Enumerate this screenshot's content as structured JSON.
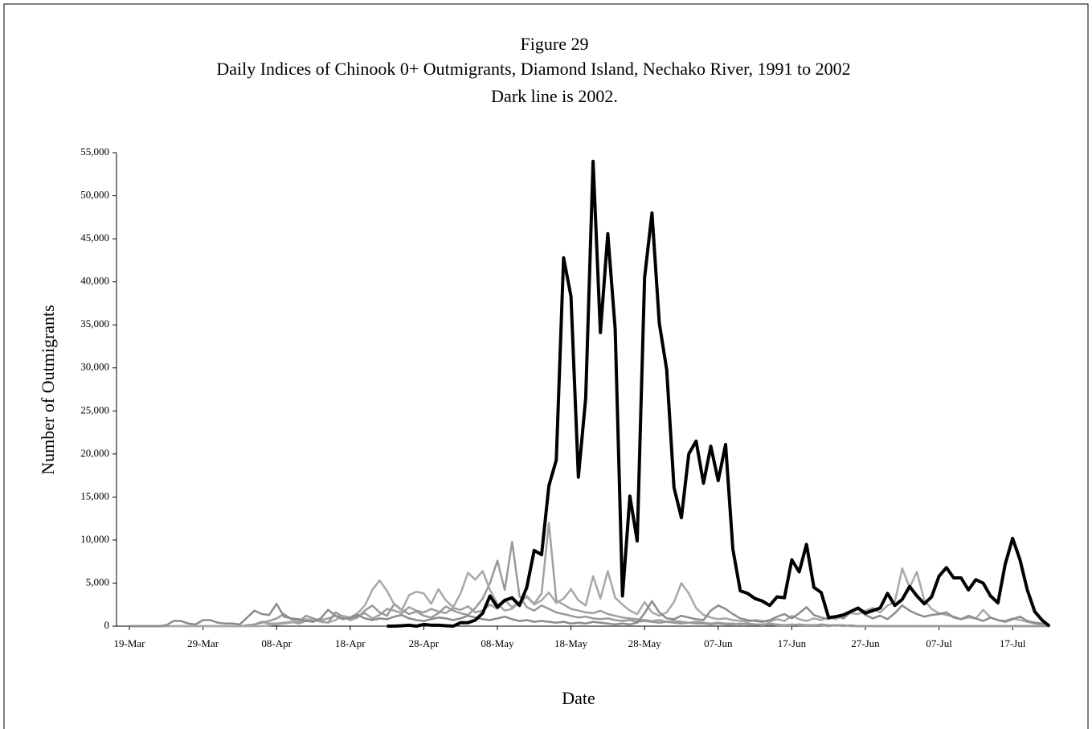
{
  "chart_data": {
    "type": "line",
    "title": "Figure 29",
    "subtitle": "Daily Indices of Chinook 0+ Outmigrants, Diamond Island, Nechako River, 1991 to 2002",
    "note": "Dark line is 2002.",
    "x_label": "Date",
    "y_label": "Number of Outmigrants",
    "ylim": [
      0,
      55000
    ],
    "yticks": [
      0,
      {
        "value": 5000,
        "label": "5,000"
      },
      {
        "value": 10000,
        "label": "10,000"
      },
      {
        "value": 15000,
        "label": "15,000"
      },
      {
        "value": 20000,
        "label": "20,000"
      },
      {
        "value": 25000,
        "label": "25,000"
      },
      {
        "value": 30000,
        "label": "30,000"
      },
      {
        "value": 35000,
        "label": "35,000"
      },
      {
        "value": 40000,
        "label": "40,000"
      },
      {
        "value": 45000,
        "label": "45,000"
      },
      {
        "value": 50000,
        "label": "50,000"
      },
      {
        "value": 55000,
        "label": "55,000"
      }
    ],
    "categories": [
      "19-Mar",
      null,
      null,
      null,
      null,
      null,
      null,
      null,
      null,
      null,
      "29-Mar",
      null,
      null,
      null,
      null,
      null,
      null,
      null,
      null,
      null,
      "08-Apr",
      null,
      null,
      null,
      null,
      null,
      null,
      null,
      null,
      null,
      "18-Apr",
      null,
      null,
      null,
      null,
      null,
      null,
      null,
      null,
      null,
      "28-Apr",
      null,
      null,
      null,
      null,
      null,
      null,
      null,
      null,
      null,
      "08-May",
      null,
      null,
      null,
      null,
      null,
      null,
      null,
      null,
      null,
      "18-May",
      null,
      null,
      null,
      null,
      null,
      null,
      null,
      null,
      null,
      "28-May",
      null,
      null,
      null,
      null,
      null,
      null,
      null,
      null,
      null,
      "07-Jun",
      null,
      null,
      null,
      null,
      null,
      null,
      null,
      null,
      null,
      "17-Jun",
      null,
      null,
      null,
      null,
      null,
      null,
      null,
      null,
      null,
      "27-Jun",
      null,
      null,
      null,
      null,
      null,
      null,
      null,
      null,
      null,
      "07-Jul",
      null,
      null,
      null,
      null,
      null,
      null,
      null,
      null,
      null,
      "17-Jul",
      null,
      null,
      null,
      null,
      null
    ],
    "series": [
      {
        "color": "#a0a0a0",
        "values": [
          0,
          0,
          0,
          0,
          0,
          0,
          0,
          0,
          0,
          0,
          0,
          0,
          0,
          0,
          0,
          0,
          0,
          200,
          500,
          300,
          300,
          400,
          500,
          300,
          600,
          800,
          700,
          900,
          1200,
          1000,
          800,
          1200,
          1500,
          900,
          1300,
          2000,
          1800,
          1500,
          2200,
          1800,
          1600,
          2000,
          1700,
          1500,
          2100,
          1900,
          2300,
          1600,
          1800,
          2500,
          2000,
          3000,
          2200,
          2800,
          3500,
          2600,
          3800,
          12000,
          3000,
          2500,
          2000,
          1800,
          1600,
          1500,
          1800,
          1400,
          1200,
          1000,
          900,
          800,
          700,
          600,
          700,
          500,
          600,
          500,
          400,
          500,
          400,
          300,
          400,
          300,
          300,
          200,
          300,
          200,
          200,
          300,
          200,
          100,
          200,
          100,
          100,
          100,
          200,
          100,
          100,
          0,
          100,
          0,
          0,
          0,
          0,
          0,
          0,
          0,
          0,
          0,
          0,
          0,
          0,
          0,
          0,
          0,
          0,
          0,
          0,
          0,
          0,
          0,
          0,
          0,
          0,
          0,
          0,
          0
        ]
      },
      {
        "color": "#999999",
        "values": [
          null,
          null,
          null,
          null,
          null,
          null,
          null,
          null,
          null,
          null,
          null,
          null,
          null,
          null,
          null,
          0,
          100,
          200,
          400,
          600,
          900,
          1400,
          800,
          500,
          1200,
          900,
          600,
          400,
          1600,
          1100,
          700,
          1000,
          1800,
          2400,
          1600,
          1200,
          2600,
          1900,
          1400,
          1700,
          1200,
          1000,
          1500,
          2300,
          1800,
          1500,
          1300,
          2100,
          3200,
          5000,
          7600,
          4200,
          9800,
          3500,
          2200,
          1800,
          2400,
          2000,
          1600,
          1400,
          1200,
          1000,
          1100,
          900,
          800,
          900,
          700,
          600,
          700,
          500,
          600,
          500,
          400,
          500,
          400,
          300,
          400,
          300,
          300,
          200,
          300,
          200,
          200,
          300,
          200,
          200,
          100,
          200,
          100,
          100,
          100,
          200,
          100,
          100,
          100,
          0,
          100,
          100,
          0,
          0,
          0,
          0,
          0,
          0,
          0,
          0,
          0,
          0,
          0,
          0,
          0,
          0,
          0,
          0,
          0,
          0,
          0,
          0,
          0,
          0,
          0,
          0,
          0,
          0,
          0,
          0
        ]
      },
      {
        "color": "#a8a8a8",
        "values": [
          0,
          0,
          0,
          0,
          0,
          0,
          0,
          0,
          0,
          0,
          0,
          0,
          0,
          0,
          0,
          0,
          0,
          0,
          0,
          100,
          200,
          300,
          400,
          600,
          800,
          700,
          500,
          400,
          700,
          1200,
          1000,
          1500,
          2400,
          4200,
          5300,
          4100,
          2500,
          1800,
          3600,
          4000,
          3800,
          2600,
          4300,
          3000,
          2200,
          3800,
          6200,
          5400,
          6400,
          4200,
          2600,
          1800,
          2000,
          2800,
          3400,
          2500,
          3000,
          3900,
          2700,
          3200,
          4300,
          3000,
          2400,
          5800,
          3200,
          6400,
          3300,
          2500,
          1800,
          1400,
          2800,
          1600,
          1200,
          1600,
          2800,
          5000,
          3800,
          2100,
          1300,
          1000,
          800,
          900,
          700,
          600,
          500,
          700,
          600,
          500,
          800,
          600,
          1200,
          800,
          600,
          900,
          700,
          1000,
          800,
          1200,
          1500,
          1400,
          1800,
          2100,
          1600,
          2400,
          2800,
          6700,
          4500,
          6300,
          3000,
          2000,
          1500,
          1300,
          1100,
          800,
          1000,
          900,
          1900,
          1000,
          700,
          600,
          900,
          700,
          500,
          300,
          200,
          100
        ]
      },
      {
        "color": "#8c8c8c",
        "values": [
          0,
          0,
          0,
          0,
          0,
          100,
          600,
          600,
          300,
          200,
          700,
          700,
          400,
          300,
          300,
          200,
          1000,
          1800,
          1400,
          1300,
          2600,
          1100,
          900,
          800,
          600,
          500,
          900,
          1900,
          1200,
          800,
          1000,
          1300,
          900,
          700,
          900,
          800,
          1100,
          1300,
          900,
          700,
          600,
          800,
          1000,
          900,
          700,
          900,
          1200,
          1000,
          800,
          700,
          900,
          1100,
          800,
          600,
          700,
          500,
          600,
          500,
          400,
          500,
          300,
          400,
          300,
          500,
          400,
          300,
          200,
          300,
          200,
          400,
          1500,
          2900,
          1600,
          900,
          800,
          1200,
          1000,
          800,
          700,
          1800,
          2400,
          2000,
          1400,
          900,
          700,
          600,
          500,
          700,
          1100,
          1400,
          900,
          1500,
          2200,
          1300,
          1000,
          800,
          1200,
          900,
          1600,
          2000,
          1300,
          900,
          1200,
          800,
          1500,
          2400,
          1800,
          1400,
          1100,
          1300,
          1400,
          1600,
          1000,
          800,
          1200,
          900,
          600,
          1000,
          700,
          500,
          800,
          1100,
          600,
          400,
          300,
          200
        ]
      },
      {
        "color": "#000000",
        "values": [
          null,
          null,
          null,
          null,
          null,
          null,
          null,
          null,
          null,
          null,
          null,
          null,
          null,
          null,
          null,
          null,
          null,
          null,
          null,
          null,
          null,
          null,
          null,
          null,
          null,
          null,
          null,
          null,
          null,
          null,
          null,
          null,
          null,
          null,
          null,
          0,
          0,
          50,
          100,
          0,
          200,
          100,
          100,
          50,
          0,
          400,
          400,
          700,
          1500,
          3500,
          2200,
          3000,
          3300,
          2400,
          4500,
          8800,
          8300,
          16300,
          19300,
          42800,
          38300,
          17300,
          26500,
          54000,
          34100,
          45600,
          34500,
          3500,
          15100,
          9900,
          40500,
          48000,
          35200,
          29800,
          16100,
          12600,
          20000,
          21500,
          16600,
          20900,
          16900,
          21100,
          8900,
          4100,
          3800,
          3200,
          2900,
          2400,
          3400,
          3300,
          7700,
          6300,
          9500,
          4500,
          3900,
          1000,
          1100,
          1300,
          1700,
          2100,
          1500,
          1800,
          2100,
          3800,
          2400,
          3100,
          4600,
          3500,
          2600,
          3400,
          5800,
          6800,
          5600,
          5600,
          4200,
          5400,
          5000,
          3500,
          2700,
          7200,
          10200,
          7700,
          4200,
          1700,
          700,
          0
        ]
      }
    ]
  }
}
